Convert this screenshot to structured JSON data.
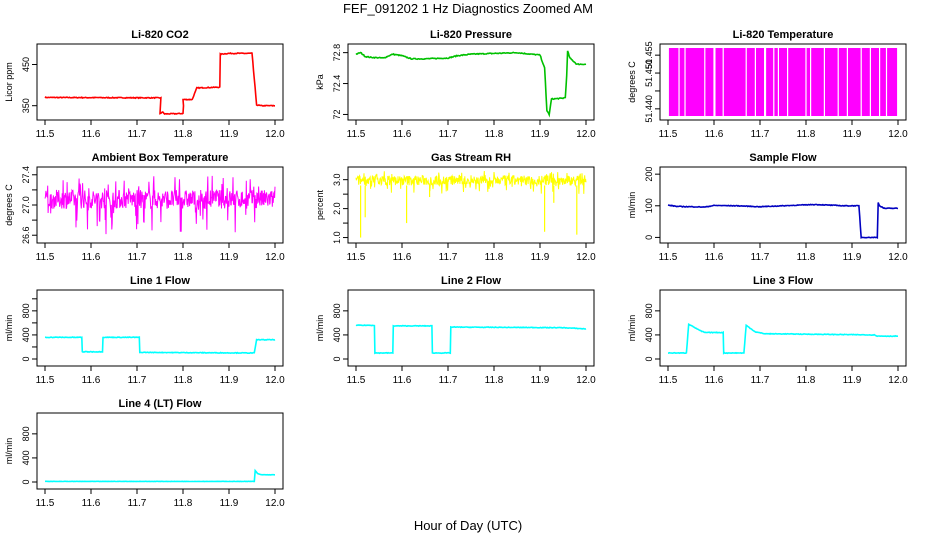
{
  "figure": {
    "title": "FEF_091202  1 Hz Diagnostics Zoomed AM",
    "xlabel": "Hour of Day (UTC)"
  },
  "chart_data": [
    {
      "type": "line",
      "title": "Li-820 CO2",
      "ylabel": "Licor ppm",
      "color": "#ff0000",
      "xlim": [
        11.5,
        12.0
      ],
      "xticks": [
        11.5,
        11.6,
        11.7,
        11.8,
        11.9,
        12.0
      ],
      "ylim": [
        325,
        490
      ],
      "yticks": [
        350,
        450
      ],
      "noise": 1,
      "series": [
        {
          "x": [
            11.5,
            11.75,
            11.752,
            11.75,
            11.755,
            11.76,
            11.8,
            11.801,
            11.8,
            11.82,
            11.83,
            11.88,
            11.881,
            11.9,
            11.95,
            11.96,
            11.97,
            12.0
          ],
          "y": [
            370,
            369,
            369,
            330,
            335,
            330,
            331,
            350,
            365,
            365,
            393,
            395,
            475,
            477,
            477,
            352,
            350,
            350
          ]
        }
      ]
    },
    {
      "type": "line",
      "title": "Li-820 Pressure",
      "ylabel": "kPa",
      "color": "#00c000",
      "xlim": [
        11.5,
        12.0
      ],
      "xticks": [
        11.5,
        11.6,
        11.7,
        11.8,
        11.9,
        12.0
      ],
      "ylim": [
        71.98,
        72.86
      ],
      "yticks": [
        72.0,
        72.4,
        72.8
      ],
      "noise": 0.006,
      "series": [
        {
          "x": [
            11.5,
            11.51,
            11.52,
            11.53,
            11.56,
            11.58,
            11.6,
            11.62,
            11.65,
            11.7,
            11.72,
            11.75,
            11.8,
            11.85,
            11.88,
            11.9,
            11.91,
            11.915,
            11.92,
            11.925,
            11.95,
            11.955,
            11.958,
            11.96,
            11.965,
            11.98,
            12.0
          ],
          "y": [
            72.78,
            72.8,
            72.75,
            72.74,
            72.73,
            72.78,
            72.76,
            72.72,
            72.72,
            72.73,
            72.76,
            72.78,
            72.79,
            72.8,
            72.78,
            72.77,
            72.6,
            72.05,
            72.0,
            72.2,
            72.21,
            72.22,
            72.5,
            72.82,
            72.73,
            72.65,
            72.65
          ]
        }
      ]
    },
    {
      "type": "line",
      "title": "Li-820 Temperature",
      "ylabel": "degrees C",
      "color": "#ff00ff",
      "xlim": [
        11.5,
        12.0
      ],
      "xticks": [
        11.5,
        11.6,
        11.7,
        11.8,
        11.9,
        12.0
      ],
      "ylim": [
        51.438,
        51.457
      ],
      "yticks": [
        51.44,
        51.445,
        51.45,
        51.455
      ],
      "yticklabels": [
        "51.440",
        "",
        "51.450",
        "51.455"
      ],
      "fill": {
        "x0": 11.502,
        "x1": 11.998,
        "lo": 51.438,
        "hi": 51.457
      },
      "gaps_x": [
        11.524,
        11.537,
        11.58,
        11.6,
        11.602,
        11.62,
        11.67,
        11.69,
        11.71,
        11.712,
        11.73,
        11.74,
        11.76,
        11.8,
        11.81,
        11.84,
        11.87,
        11.89,
        11.92,
        11.94,
        11.96,
        11.975
      ],
      "series": []
    },
    {
      "type": "line",
      "title": "Ambient Box Temperature",
      "ylabel": "degrees C",
      "color": "#ff00ff",
      "xlim": [
        11.5,
        12.0
      ],
      "xticks": [
        11.5,
        11.6,
        11.7,
        11.8,
        11.9,
        12.0
      ],
      "ylim": [
        26.55,
        27.45
      ],
      "yticks": [
        26.6,
        26.8,
        27.0,
        27.2,
        27.4
      ],
      "yticklabels": [
        "26.6",
        "",
        "27.0",
        "",
        "27.4"
      ],
      "band": {
        "lo": 26.95,
        "hi": 27.2,
        "spike_lo": 26.6,
        "spike_hi": 27.4
      },
      "series": [
        {
          "x": [
            11.5,
            12.0
          ],
          "y": [
            27.08,
            27.08
          ]
        }
      ]
    },
    {
      "type": "line",
      "title": "Gas Stream RH",
      "ylabel": "percent",
      "color": "#ffff00",
      "xlim": [
        11.5,
        12.0
      ],
      "xticks": [
        11.5,
        11.6,
        11.7,
        11.8,
        11.9,
        12.0
      ],
      "ylim": [
        0.95,
        3.3
      ],
      "yticks": [
        1.0,
        1.5,
        2.0,
        2.5,
        3.0
      ],
      "yticklabels": [
        "1.0",
        "",
        "2.0",
        "",
        "3.0"
      ],
      "band": {
        "lo": 2.8,
        "hi": 3.15,
        "spike_lo": 2.5,
        "spike_hi": 3.3
      },
      "spikes": [
        [
          11.51,
          1.0
        ],
        [
          11.52,
          1.7
        ],
        [
          11.61,
          1.5
        ],
        [
          11.66,
          2.4
        ],
        [
          11.91,
          1.2
        ],
        [
          11.93,
          2.2
        ],
        [
          11.98,
          1.1
        ]
      ],
      "series": [
        {
          "x": [
            11.5,
            12.0
          ],
          "y": [
            2.98,
            2.98
          ]
        }
      ]
    },
    {
      "type": "line",
      "title": "Sample Flow",
      "ylabel": "ml/min",
      "color": "#0000c0",
      "xlim": [
        11.5,
        12.0
      ],
      "xticks": [
        11.5,
        11.6,
        11.7,
        11.8,
        11.9,
        12.0
      ],
      "ylim": [
        -5,
        210
      ],
      "yticks": [
        0,
        100,
        200
      ],
      "noise": 1,
      "series": [
        {
          "x": [
            11.5,
            11.52,
            11.58,
            11.6,
            11.65,
            11.7,
            11.75,
            11.8,
            11.82,
            11.87,
            11.88,
            11.9,
            11.915,
            11.92,
            11.955,
            11.957,
            11.96,
            11.97,
            11.99,
            12.0
          ],
          "y": [
            102,
            98,
            96,
            101,
            100,
            97,
            100,
            103,
            104,
            101,
            100,
            100,
            100,
            0,
            0,
            110,
            100,
            92,
            92,
            92
          ]
        }
      ]
    },
    {
      "type": "line",
      "title": "Line 1 Flow",
      "ylabel": "ml/min",
      "color": "#00ffff",
      "xlim": [
        11.5,
        12.0
      ],
      "xticks": [
        11.5,
        11.6,
        11.7,
        11.8,
        11.9,
        12.0
      ],
      "ylim": [
        -50,
        1080
      ],
      "yticks": [
        0,
        200,
        400,
        600,
        800,
        1000
      ],
      "yticklabels": [
        "0",
        "400",
        "800"
      ],
      "ytickshow": [
        0,
        400,
        800
      ],
      "noise": 5,
      "series": [
        {
          "x": [
            11.5,
            11.58,
            11.581,
            11.625,
            11.626,
            11.705,
            11.706,
            11.95,
            11.955,
            11.96,
            12.0
          ],
          "y": [
            360,
            360,
            120,
            120,
            360,
            360,
            110,
            100,
            100,
            320,
            320
          ]
        }
      ]
    },
    {
      "type": "line",
      "title": "Line 2 Flow",
      "ylabel": "ml/min",
      "color": "#00ffff",
      "xlim": [
        11.5,
        12.0
      ],
      "xticks": [
        11.5,
        11.6,
        11.7,
        11.8,
        11.9,
        12.0
      ],
      "ylim": [
        -50,
        1080
      ],
      "yticks": [
        0,
        400,
        800
      ],
      "noise": 5,
      "series": [
        {
          "x": [
            11.5,
            11.54,
            11.541,
            11.58,
            11.581,
            11.665,
            11.666,
            11.705,
            11.706,
            11.95,
            12.0
          ],
          "y": [
            560,
            560,
            100,
            100,
            550,
            550,
            100,
            100,
            530,
            520,
            500
          ]
        }
      ]
    },
    {
      "type": "line",
      "title": "Line 3 Flow",
      "ylabel": "ml/min",
      "color": "#00ffff",
      "xlim": [
        11.5,
        12.0
      ],
      "xticks": [
        11.5,
        11.6,
        11.7,
        11.8,
        11.9,
        12.0
      ],
      "ylim": [
        -50,
        1080
      ],
      "yticks": [
        0,
        400,
        800
      ],
      "noise": 5,
      "series": [
        {
          "x": [
            11.5,
            11.54,
            11.545,
            11.57,
            11.58,
            11.62,
            11.621,
            11.665,
            11.67,
            11.69,
            11.71,
            11.95,
            11.955,
            12.0
          ],
          "y": [
            100,
            100,
            580,
            470,
            440,
            440,
            100,
            100,
            560,
            450,
            420,
            400,
            380,
            380
          ]
        }
      ]
    },
    {
      "type": "line",
      "title": "Line 4 (LT) Flow",
      "ylabel": "ml/min",
      "color": "#00ffff",
      "xlim": [
        11.5,
        12.0
      ],
      "xticks": [
        11.5,
        11.6,
        11.7,
        11.8,
        11.9,
        12.0
      ],
      "ylim": [
        -50,
        1080
      ],
      "yticks": [
        0,
        400,
        800
      ],
      "noise": 2,
      "series": [
        {
          "x": [
            11.5,
            11.955,
            11.957,
            11.962,
            11.97,
            12.0
          ],
          "y": [
            10,
            10,
            190,
            140,
            120,
            120
          ]
        }
      ]
    }
  ]
}
